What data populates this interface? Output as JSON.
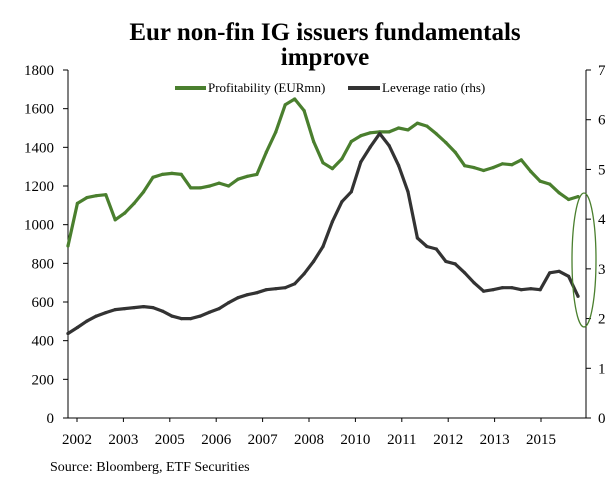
{
  "chart_data": {
    "type": "line",
    "title_lines": [
      "Eur non-fin IG issuers fundamentals",
      "improve"
    ],
    "source": "Source: Bloomberg, ETF Securities",
    "x_tick_labels": [
      "2002",
      "2003",
      "2005",
      "2006",
      "2007",
      "2008",
      "2010",
      "2011",
      "2012",
      "2013",
      "2015"
    ],
    "y_left": {
      "ticks": [
        0,
        200,
        400,
        600,
        800,
        1000,
        1200,
        1400,
        1600,
        1800
      ],
      "ylim": [
        0,
        1800
      ]
    },
    "y_right": {
      "ticks": [
        0,
        1,
        2,
        3,
        4,
        5,
        6,
        7
      ],
      "ylim": [
        0,
        7
      ]
    },
    "legend_position": "top",
    "series": [
      {
        "name": "Profitability (EURmn)",
        "axis": "left",
        "color": "#4a7f2e",
        "values": [
          890,
          1110,
          1140,
          1150,
          1155,
          1025,
          1060,
          1110,
          1170,
          1245,
          1260,
          1265,
          1260,
          1190,
          1190,
          1200,
          1215,
          1200,
          1235,
          1250,
          1260,
          1375,
          1480,
          1620,
          1650,
          1590,
          1430,
          1320,
          1290,
          1340,
          1430,
          1460,
          1475,
          1480,
          1480,
          1500,
          1490,
          1525,
          1510,
          1470,
          1425,
          1375,
          1305,
          1295,
          1280,
          1295,
          1315,
          1310,
          1335,
          1275,
          1225,
          1210,
          1165,
          1130,
          1145
        ]
      },
      {
        "name": "Leverage ratio (rhs)",
        "axis": "right",
        "color": "#333333",
        "values": [
          1.7,
          1.82,
          1.95,
          2.05,
          2.12,
          2.18,
          2.2,
          2.22,
          2.24,
          2.22,
          2.15,
          2.05,
          2.0,
          2.0,
          2.05,
          2.13,
          2.2,
          2.32,
          2.42,
          2.48,
          2.52,
          2.58,
          2.6,
          2.62,
          2.7,
          2.9,
          3.15,
          3.45,
          3.95,
          4.35,
          4.55,
          5.15,
          5.45,
          5.72,
          5.48,
          5.08,
          4.55,
          3.62,
          3.45,
          3.4,
          3.15,
          3.1,
          2.92,
          2.72,
          2.55,
          2.58,
          2.62,
          2.62,
          2.58,
          2.6,
          2.58,
          2.92,
          2.95,
          2.85,
          2.45
        ]
      }
    ]
  }
}
